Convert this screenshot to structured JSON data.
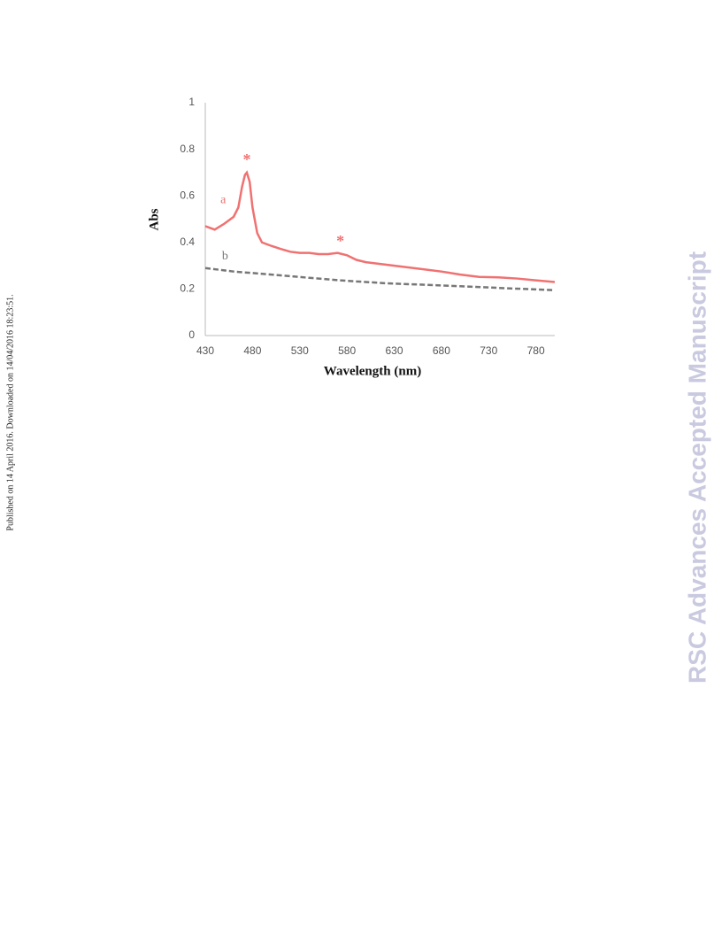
{
  "side_note": "Published on 14 April 2016. Downloaded on 14/04/2016 18:23:51.",
  "watermark": "RSC Advances Accepted Manuscript",
  "chart_data": {
    "type": "line",
    "xlabel": "Wavelength (nm)",
    "ylabel": "Abs",
    "xlim": [
      430,
      800
    ],
    "xticks": [
      430,
      480,
      530,
      580,
      630,
      680,
      730,
      780
    ],
    "ylim": [
      0,
      1
    ],
    "yticks": [
      0,
      0.2,
      0.4,
      0.6,
      0.8,
      1
    ],
    "grid": false,
    "series": [
      {
        "name": "a",
        "color": "#f07171",
        "dash": false,
        "x": [
          430,
          440,
          450,
          460,
          465,
          469,
          472,
          474,
          477,
          480,
          485,
          490,
          500,
          510,
          520,
          530,
          540,
          550,
          560,
          570,
          580,
          590,
          600,
          620,
          640,
          660,
          680,
          700,
          720,
          740,
          760,
          780,
          800
        ],
        "values": [
          0.47,
          0.455,
          0.48,
          0.51,
          0.55,
          0.64,
          0.69,
          0.7,
          0.66,
          0.55,
          0.44,
          0.4,
          0.385,
          0.372,
          0.36,
          0.355,
          0.355,
          0.35,
          0.35,
          0.355,
          0.345,
          0.325,
          0.315,
          0.305,
          0.295,
          0.285,
          0.275,
          0.262,
          0.252,
          0.25,
          0.245,
          0.237,
          0.23
        ]
      },
      {
        "name": "b",
        "color": "#777777",
        "dash": true,
        "x": [
          430,
          460,
          500,
          540,
          580,
          620,
          650,
          700,
          750,
          800
        ],
        "values": [
          0.29,
          0.275,
          0.262,
          0.248,
          0.235,
          0.225,
          0.22,
          0.212,
          0.203,
          0.195
        ]
      }
    ],
    "annotations": [
      {
        "text": "*",
        "x": 474,
        "y": 0.75,
        "color": "#f07171"
      },
      {
        "text": "*",
        "x": 573,
        "y": 0.4,
        "color": "#f07171"
      },
      {
        "text": "a",
        "x": 449,
        "y": 0.58,
        "color": "#f07171"
      },
      {
        "text": "b",
        "x": 451,
        "y": 0.34,
        "color": "#777777"
      }
    ]
  }
}
